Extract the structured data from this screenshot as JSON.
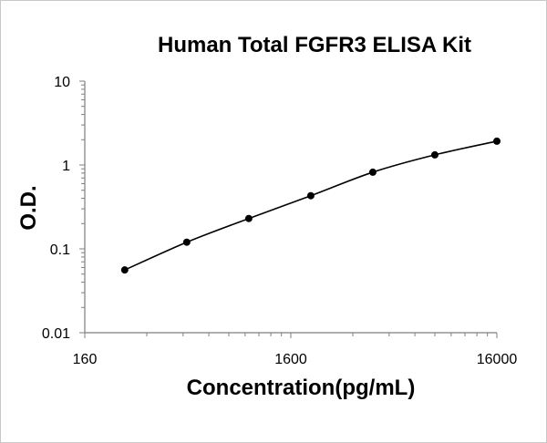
{
  "chart_data": {
    "type": "line",
    "title": "Human Total FGFR3 ELISA Kit",
    "xlabel": "Concentration(pg/mL)",
    "ylabel": "O.D.",
    "x_scale": "log",
    "y_scale": "log",
    "xlim": [
      160,
      16000
    ],
    "ylim": [
      0.01,
      10
    ],
    "x_ticks": [
      "160",
      "1600",
      "16000"
    ],
    "y_ticks": [
      "10",
      "1",
      "0.1",
      "0.01"
    ],
    "grid": false,
    "legend": "none",
    "colors": {
      "line": "#000000",
      "marker": "#000000"
    },
    "series": [
      {
        "x": [
          250,
          500,
          1000,
          2000,
          4000,
          8000,
          16000
        ],
        "y": [
          0.056,
          0.12,
          0.23,
          0.43,
          0.82,
          1.32,
          1.92
        ]
      }
    ]
  }
}
